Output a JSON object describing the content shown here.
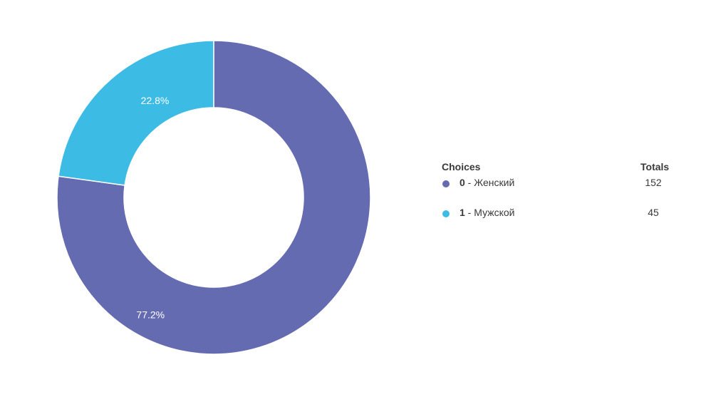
{
  "colors": {
    "female": "#656BB1",
    "male": "#3CBBE4"
  },
  "legend": {
    "header_choices": "Choices",
    "header_totals": "Totals",
    "rows": [
      {
        "code": "0",
        "sep": " - ",
        "label": "Женский",
        "total": "152"
      },
      {
        "code": "1",
        "sep": " - ",
        "label": "Мужской",
        "total": "45"
      }
    ]
  },
  "chart_data": {
    "type": "pie",
    "donut": true,
    "categories": [
      "0 - Женский",
      "1 - Мужской"
    ],
    "values": [
      152,
      45
    ],
    "percent_labels": [
      "77.2%",
      "22.8%"
    ],
    "title": ""
  }
}
